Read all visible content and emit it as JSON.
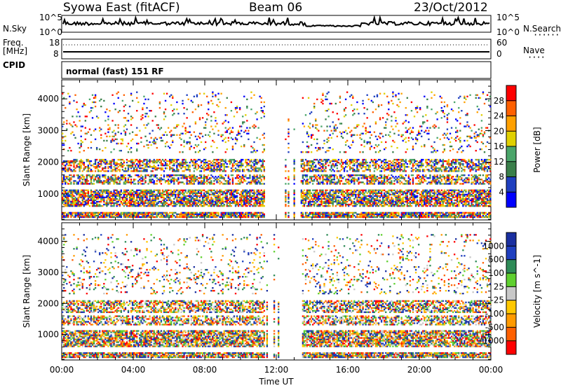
{
  "header": {
    "station": "Syowa East (fitACF)",
    "beam": "Beam 06",
    "date": "23/Oct/2012"
  },
  "top_panels": {
    "nsky_label": "N.Sky",
    "nsearch_label": "N.Search",
    "nsky_ticks": [
      "10^5",
      "10^0"
    ],
    "nsearch_ticks": [
      "10^5",
      "10^0"
    ],
    "freq_label_line1": "Freq.",
    "freq_label_line2": "[MHz]",
    "freq_ticks": [
      "18",
      "8"
    ],
    "nave_label": "Nave",
    "nave_ticks": [
      "60",
      "0"
    ],
    "cpid_label": "CPID",
    "cpid_text": "normal (fast) 151 RF"
  },
  "x_axis": {
    "label": "Time UT",
    "ticks": [
      "00:00",
      "04:00",
      "08:00",
      "12:00",
      "16:00",
      "20:00",
      "00:00"
    ]
  },
  "colors": {
    "power": [
      "#0000ff",
      "#1f3fbf",
      "#3a7f4a",
      "#4aa56a",
      "#e0d000",
      "#ffa000",
      "#ff6000",
      "#ff0000"
    ],
    "velocity": [
      "#ff0000",
      "#ff6000",
      "#ff9a00",
      "#ffc800",
      "#c8c8c8",
      "#5fd02f",
      "#2e8b57",
      "#1f3fbf",
      "#1a2fa0"
    ]
  },
  "chart_data": [
    {
      "type": "heatmap",
      "panel": "power",
      "xlabel": "",
      "ylabel": "Slant Range [km]",
      "x_ticks": [
        "00:00",
        "04:00",
        "08:00",
        "12:00",
        "16:00",
        "20:00",
        "00:00"
      ],
      "y_ticks": [
        1000,
        2000,
        3000,
        4000
      ],
      "ylim": [
        180,
        4600
      ],
      "colorbar": {
        "label": "Power [dB]",
        "ticks": [
          4,
          8,
          12,
          16,
          20,
          24,
          28
        ]
      }
    },
    {
      "type": "heatmap",
      "panel": "velocity",
      "xlabel": "Time UT",
      "ylabel": "Slant Range [km]",
      "x_ticks": [
        "00:00",
        "04:00",
        "08:00",
        "12:00",
        "16:00",
        "20:00",
        "00:00"
      ],
      "y_ticks": [
        1000,
        2000,
        3000,
        4000
      ],
      "ylim": [
        180,
        4600
      ],
      "colorbar": {
        "label": "Velocity [m s^-1]",
        "ticks": [
          1000,
          500,
          100,
          25,
          -25,
          -100,
          -500,
          -1000
        ]
      }
    }
  ]
}
